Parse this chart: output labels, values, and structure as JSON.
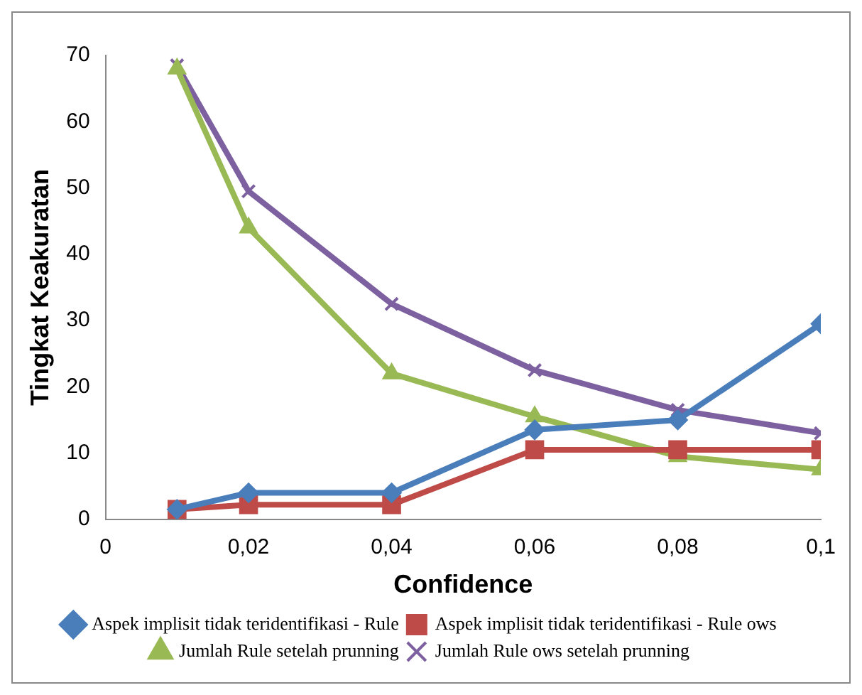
{
  "chart_data": {
    "type": "line",
    "xlabel": "Confidence",
    "ylabel": "Tingkat Keakuratan",
    "x": [
      0.01,
      0.02,
      0.04,
      0.06,
      0.08,
      0.1
    ],
    "series": [
      {
        "name": "Aspek implisit tidak teridentifikasi - Rule",
        "color": "#4a7ebb",
        "marker": "diamond",
        "values": [
          1.5,
          4,
          4,
          13.5,
          15,
          29.5
        ]
      },
      {
        "name": "Aspek implisit tidak teridentifikasi - Rule ows",
        "color": "#be4b48",
        "marker": "square",
        "values": [
          1.5,
          2.2,
          2.2,
          10.5,
          10.5,
          10.5
        ]
      },
      {
        "name": "Jumlah Rule setelah prunning",
        "color": "#98b954",
        "marker": "triangle",
        "values": [
          68,
          44,
          22,
          15.5,
          9.5,
          7.5
        ]
      },
      {
        "name": "Jumlah Rule ows setelah prunning",
        "color": "#7d60a0",
        "marker": "cross",
        "values": [
          68.5,
          49.5,
          32.5,
          22.5,
          16.5,
          13
        ]
      }
    ],
    "xlim": [
      0,
      0.1
    ],
    "xticks": [
      0,
      {
        "value": 0.02,
        "label": "0,02"
      },
      {
        "value": 0.04,
        "label": "0,04"
      },
      {
        "value": 0.06,
        "label": "0,06"
      },
      {
        "value": 0.08,
        "label": "0,08"
      },
      {
        "value": 0.1,
        "label": "0,1"
      }
    ],
    "ylim": [
      0,
      70
    ],
    "yticks": [
      0,
      10,
      20,
      30,
      40,
      50,
      60,
      70
    ],
    "grid": false,
    "legend": "bottom",
    "line_style": "solid"
  }
}
